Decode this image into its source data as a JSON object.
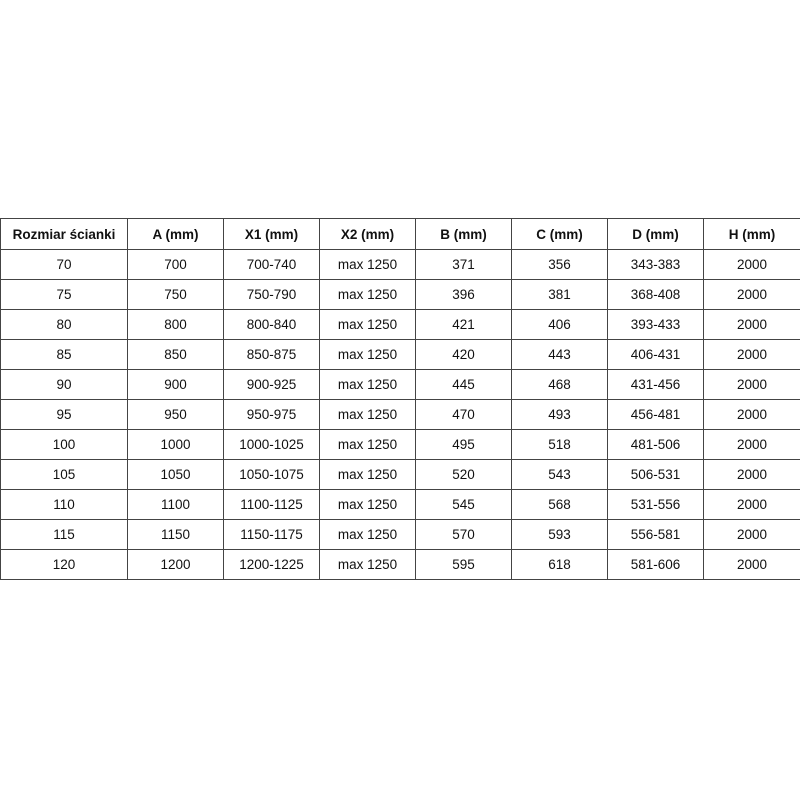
{
  "table": {
    "headers": [
      "Rozmiar ścianki",
      "A (mm)",
      "X1 (mm)",
      "X2 (mm)",
      "B (mm)",
      "C (mm)",
      "D (mm)",
      "H (mm)"
    ],
    "rows": [
      [
        "70",
        "700",
        "700-740",
        "max 1250",
        "371",
        "356",
        "343-383",
        "2000"
      ],
      [
        "75",
        "750",
        "750-790",
        "max 1250",
        "396",
        "381",
        "368-408",
        "2000"
      ],
      [
        "80",
        "800",
        "800-840",
        "max 1250",
        "421",
        "406",
        "393-433",
        "2000"
      ],
      [
        "85",
        "850",
        "850-875",
        "max 1250",
        "420",
        "443",
        "406-431",
        "2000"
      ],
      [
        "90",
        "900",
        "900-925",
        "max 1250",
        "445",
        "468",
        "431-456",
        "2000"
      ],
      [
        "95",
        "950",
        "950-975",
        "max 1250",
        "470",
        "493",
        "456-481",
        "2000"
      ],
      [
        "100",
        "1000",
        "1000-1025",
        "max 1250",
        "495",
        "518",
        "481-506",
        "2000"
      ],
      [
        "105",
        "1050",
        "1050-1075",
        "max 1250",
        "520",
        "543",
        "506-531",
        "2000"
      ],
      [
        "110",
        "1100",
        "1100-1125",
        "max 1250",
        "545",
        "568",
        "531-556",
        "2000"
      ],
      [
        "115",
        "1150",
        "1150-1175",
        "max 1250",
        "570",
        "593",
        "556-581",
        "2000"
      ],
      [
        "120",
        "1200",
        "1200-1225",
        "max 1250",
        "595",
        "618",
        "581-606",
        "2000"
      ]
    ]
  }
}
